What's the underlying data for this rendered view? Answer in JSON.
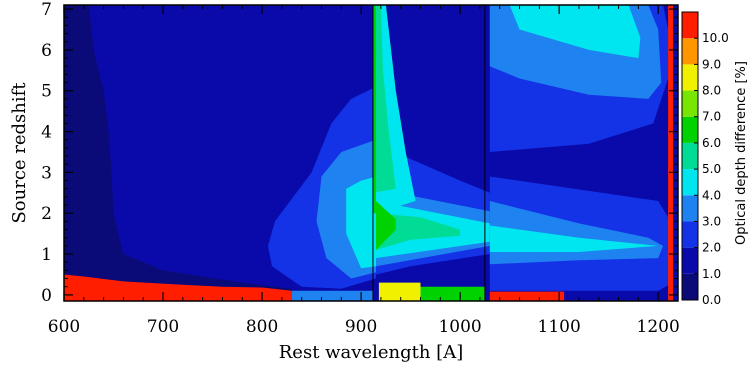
{
  "chart_data": {
    "type": "heatmap",
    "title": "",
    "xlabel": "Rest wavelength [A]",
    "ylabel": "Source redshift",
    "xlim": [
      600,
      1220
    ],
    "ylim": [
      -0.15,
      7.1
    ],
    "x_ticks": [
      "600",
      "700",
      "800",
      "900",
      "1000",
      "1100",
      "1200"
    ],
    "y_ticks": [
      "0",
      "1",
      "2",
      "3",
      "4",
      "5",
      "6",
      "7"
    ],
    "colorbar": {
      "label": "Optical depth difference [%]",
      "tick_labels": [
        "0.0",
        "1.0",
        "2.0",
        "3.0",
        "4.0",
        "5.0",
        "6.0",
        "7.0",
        "8.0",
        "9.0",
        "10.0"
      ],
      "range": [
        0,
        11
      ],
      "levels": [
        {
          "min": 0,
          "max": 1,
          "color": "#0a0a78"
        },
        {
          "min": 1,
          "max": 2,
          "color": "#0a0aaa"
        },
        {
          "min": 2,
          "max": 3,
          "color": "#1432e6"
        },
        {
          "min": 3,
          "max": 4,
          "color": "#1e82f0"
        },
        {
          "min": 4,
          "max": 5,
          "color": "#00e6f0"
        },
        {
          "min": 5,
          "max": 6,
          "color": "#00dc96"
        },
        {
          "min": 6,
          "max": 7,
          "color": "#00d200"
        },
        {
          "min": 7,
          "max": 8,
          "color": "#78e600"
        },
        {
          "min": 8,
          "max": 9,
          "color": "#f0f000"
        },
        {
          "min": 9,
          "max": 10,
          "color": "#ff9600"
        },
        {
          "min": 10,
          "max": 11,
          "color": "#ff1e00"
        }
      ]
    },
    "regions": [
      {
        "level": 1,
        "points": [
          [
            600,
            -0.15
          ],
          [
            1220,
            -0.15
          ],
          [
            1220,
            7.1
          ],
          [
            625,
            7.1
          ],
          [
            630,
            6
          ],
          [
            640,
            5
          ],
          [
            645,
            4
          ],
          [
            648,
            3
          ],
          [
            650,
            2
          ],
          [
            660,
            1
          ],
          [
            700,
            0.6
          ],
          [
            780,
            0.3
          ],
          [
            830,
            0.15
          ],
          [
            830,
            -0.15
          ]
        ]
      },
      {
        "level": 1,
        "points": [
          [
            1030,
            7.1
          ],
          [
            1215,
            7.1
          ],
          [
            1215,
            -0.15
          ],
          [
            1030,
            -0.15
          ]
        ]
      },
      {
        "level": 2,
        "points": [
          [
            813,
            1.8
          ],
          [
            850,
            3
          ],
          [
            870,
            4.2
          ],
          [
            890,
            4.8
          ],
          [
            915,
            5.1
          ],
          [
            915,
            0.4
          ],
          [
            880,
            0.15
          ],
          [
            840,
            0.2
          ],
          [
            810,
            0.7
          ],
          [
            806,
            1.2
          ]
        ]
      },
      {
        "level": 2,
        "points": [
          [
            915,
            3.7
          ],
          [
            1000,
            2.8
          ],
          [
            1030,
            2.5
          ],
          [
            1030,
            1.0
          ],
          [
            950,
            0.7
          ],
          [
            915,
            0.5
          ]
        ]
      },
      {
        "level": 2,
        "points": [
          [
            1030,
            2.9
          ],
          [
            1200,
            2.3
          ],
          [
            1210,
            1.9
          ],
          [
            1215,
            1.6
          ],
          [
            1215,
            0.3
          ],
          [
            1200,
            0.1
          ],
          [
            1030,
            0.1
          ]
        ]
      },
      {
        "level": 2,
        "points": [
          [
            1030,
            7.1
          ],
          [
            1205,
            7.1
          ],
          [
            1210,
            6.5
          ],
          [
            1210,
            5.3
          ],
          [
            1195,
            4.2
          ],
          [
            1130,
            3.7
          ],
          [
            1030,
            3.5
          ]
        ]
      },
      {
        "level": 3,
        "points": [
          [
            860,
            2.9
          ],
          [
            880,
            3.5
          ],
          [
            915,
            3.8
          ],
          [
            915,
            0.55
          ],
          [
            890,
            0.4
          ],
          [
            865,
            0.9
          ],
          [
            855,
            1.8
          ]
        ]
      },
      {
        "level": 3,
        "points": [
          [
            915,
            2.6
          ],
          [
            1030,
            2.05
          ],
          [
            1030,
            1.2
          ],
          [
            915,
            0.7
          ]
        ]
      },
      {
        "level": 3,
        "points": [
          [
            1030,
            2.3
          ],
          [
            1120,
            1.75
          ],
          [
            1190,
            1.4
          ],
          [
            1205,
            1.2
          ],
          [
            1200,
            0.9
          ],
          [
            1120,
            0.85
          ],
          [
            1030,
            0.75
          ]
        ]
      },
      {
        "level": 3,
        "points": [
          [
            1030,
            7.1
          ],
          [
            1190,
            7.1
          ],
          [
            1200,
            6.5
          ],
          [
            1203,
            5.2
          ],
          [
            1190,
            4.8
          ],
          [
            1130,
            4.9
          ],
          [
            1060,
            5.3
          ],
          [
            1030,
            5.6
          ]
        ]
      },
      {
        "level": 4,
        "points": [
          [
            885,
            2.6
          ],
          [
            900,
            2.8
          ],
          [
            915,
            2.9
          ],
          [
            915,
            0.7
          ],
          [
            900,
            0.65
          ],
          [
            885,
            1.5
          ]
        ]
      },
      {
        "level": 4,
        "points": [
          [
            915,
            2.3
          ],
          [
            1030,
            1.75
          ],
          [
            1030,
            1.3
          ],
          [
            915,
            0.9
          ]
        ]
      },
      {
        "level": 4,
        "points": [
          [
            1030,
            1.7
          ],
          [
            1120,
            1.4
          ],
          [
            1200,
            1.2
          ],
          [
            1120,
            1.05
          ],
          [
            1030,
            1.05
          ]
        ]
      },
      {
        "level": 4,
        "points": [
          [
            1050,
            7.1
          ],
          [
            1170,
            7.1
          ],
          [
            1182,
            6.3
          ],
          [
            1180,
            5.8
          ],
          [
            1130,
            6.0
          ],
          [
            1060,
            6.5
          ]
        ]
      },
      {
        "level": 4,
        "points": [
          [
            915,
            7.1
          ],
          [
            925,
            7.1
          ],
          [
            935,
            5.0
          ],
          [
            945,
            3.5
          ],
          [
            955,
            2.3
          ],
          [
            915,
            2.0
          ]
        ]
      },
      {
        "level": 5,
        "points": [
          [
            912,
            7.1
          ],
          [
            920,
            7.1
          ],
          [
            922,
            5.5
          ],
          [
            928,
            4.0
          ],
          [
            935,
            2.6
          ],
          [
            912,
            2.5
          ]
        ]
      },
      {
        "level": 5,
        "points": [
          [
            915,
            2.0
          ],
          [
            960,
            1.9
          ],
          [
            1000,
            1.6
          ],
          [
            1000,
            1.45
          ],
          [
            950,
            1.35
          ],
          [
            915,
            1.1
          ]
        ]
      },
      {
        "level": 6,
        "points": [
          [
            915,
            2.3
          ],
          [
            935,
            1.85
          ],
          [
            935,
            1.6
          ],
          [
            915,
            1.1
          ]
        ]
      },
      {
        "level": 6,
        "points": [
          [
            912,
            7.1
          ],
          [
            915,
            7.1
          ],
          [
            915,
            2.0
          ],
          [
            912,
            2.0
          ]
        ]
      },
      {
        "level": 10,
        "points": [
          [
            600,
            0.5
          ],
          [
            620,
            0.45
          ],
          [
            660,
            0.33
          ],
          [
            720,
            0.25
          ],
          [
            760,
            0.2
          ],
          [
            800,
            0.18
          ],
          [
            830,
            0.1
          ],
          [
            830,
            -0.15
          ],
          [
            600,
            -0.15
          ]
        ]
      },
      {
        "level": 10,
        "points": [
          [
            1030,
            0.08
          ],
          [
            1105,
            0.08
          ],
          [
            1105,
            -0.15
          ],
          [
            1030,
            -0.15
          ]
        ]
      },
      {
        "level": 3,
        "points": [
          [
            830,
            0.1
          ],
          [
            912,
            0.1
          ],
          [
            912,
            -0.15
          ],
          [
            830,
            -0.15
          ]
        ]
      },
      {
        "level": 8,
        "points": [
          [
            918,
            0.3
          ],
          [
            960,
            0.3
          ],
          [
            960,
            -0.15
          ],
          [
            918,
            -0.15
          ]
        ]
      },
      {
        "level": 6,
        "points": [
          [
            960,
            0.2
          ],
          [
            1025,
            0.2
          ],
          [
            1025,
            -0.15
          ],
          [
            960,
            -0.15
          ]
        ]
      },
      {
        "level": 10,
        "points": [
          [
            1210,
            7.1
          ],
          [
            1215,
            7.1
          ],
          [
            1215,
            -0.15
          ],
          [
            1210,
            -0.15
          ]
        ]
      }
    ],
    "lines": [
      {
        "x": [
          912,
          912
        ],
        "y": [
          -0.15,
          7.1
        ]
      },
      {
        "x": [
          1025,
          1025
        ],
        "y": [
          -0.15,
          7.1
        ]
      }
    ]
  }
}
